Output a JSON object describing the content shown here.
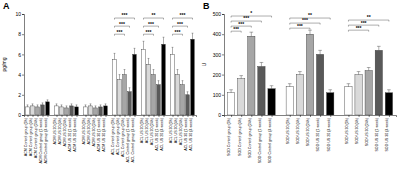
{
  "chart_data": [
    {
      "type": "bar",
      "title": "A",
      "y_label": "pg/mg",
      "categories": [
        "ACM Control group (0h)",
        "ACM Control group (4h)",
        "ACM Control group (24h)",
        "ACM Control group (1 week)",
        "ACM Control group (4 week)",
        "ACM US 20 (0h)",
        "ACM US 20 (4h)",
        "ACM US 20 (24h)",
        "ACM US 20 (1 week)",
        "ACM US 20 (4 week)",
        "ACM US 30 (0h)",
        "ACM US 30 (4h)",
        "ACM US 30 (24h)",
        "ACM US 30 (1 week)",
        "ACM US 30 (4 week)",
        "ACL Control group (0h)",
        "ACL Control group (4h)",
        "ACL Control group (24h)",
        "ACL Control group (1 week)",
        "ACL Control group (4 week)",
        "ACL US 20 (0h)",
        "ACL US 20 (4h)",
        "ACL US 20 (24h)",
        "ACL US 20 (1 week)",
        "ACL US 20 (4 week)",
        "ACL US 30 (0h)",
        "ACL US 30 (4h)",
        "ACL US 30 (24h)",
        "ACL US 30 (1 week)",
        "ACL US 30 (4 week)"
      ],
      "values": [
        0.8,
        0.9,
        0.8,
        1.0,
        1.3,
        0.9,
        0.8,
        0.7,
        0.9,
        0.8,
        0.8,
        0.9,
        0.7,
        0.8,
        0.9,
        5.5,
        3.5,
        4.0,
        2.3,
        6.0,
        6.5,
        5.0,
        4.0,
        3.0,
        7.0,
        6.0,
        4.0,
        3.0,
        2.0,
        7.5
      ],
      "errors": [
        0.2,
        0.2,
        0.2,
        0.2,
        0.2,
        0.2,
        0.2,
        0.2,
        0.2,
        0.2,
        0.2,
        0.2,
        0.2,
        0.2,
        0.2,
        0.6,
        0.5,
        0.5,
        0.4,
        0.6,
        0.8,
        0.6,
        0.5,
        0.4,
        0.7,
        0.7,
        0.5,
        0.4,
        0.3,
        0.6
      ],
      "colors": [
        "#ffffff",
        "#d9d9d9",
        "#a6a6a6",
        "#595959",
        "#000000",
        "#ffffff",
        "#d9d9d9",
        "#a6a6a6",
        "#595959",
        "#000000",
        "#ffffff",
        "#d9d9d9",
        "#a6a6a6",
        "#595959",
        "#000000",
        "#ffffff",
        "#d9d9d9",
        "#a6a6a6",
        "#595959",
        "#000000",
        "#ffffff",
        "#d9d9d9",
        "#a6a6a6",
        "#595959",
        "#000000",
        "#ffffff",
        "#d9d9d9",
        "#a6a6a6",
        "#595959",
        "#000000"
      ],
      "ylim": [
        0,
        10
      ],
      "yticks": [
        0,
        2,
        4,
        6,
        8,
        10
      ],
      "annotations": [
        {
          "from": 15,
          "to": 19,
          "y": 9.6,
          "label": "***"
        },
        {
          "from": 15,
          "to": 18,
          "y": 8.8,
          "label": "***"
        },
        {
          "from": 15,
          "to": 17,
          "y": 8.0,
          "label": "***"
        },
        {
          "from": 20,
          "to": 24,
          "y": 9.6,
          "label": "**"
        },
        {
          "from": 20,
          "to": 23,
          "y": 8.8,
          "label": "***"
        },
        {
          "from": 20,
          "to": 22,
          "y": 8.0,
          "label": "***"
        },
        {
          "from": 25,
          "to": 29,
          "y": 9.6,
          "label": "***"
        },
        {
          "from": 25,
          "to": 28,
          "y": 8.8,
          "label": "***"
        },
        {
          "from": 25,
          "to": 27,
          "y": 8.0,
          "label": "***"
        }
      ]
    },
    {
      "type": "bar",
      "title": "B",
      "y_label": "U",
      "categories": [
        "SOD Control group (0h)",
        "SOD Control group (4h)",
        "SOD Control group (24h)",
        "SOD Control group (1 week)",
        "SOD Control group (4 week)",
        "SOD US 20 (0h)",
        "SOD US 20 (4h)",
        "SOD US 20 (24h)",
        "SOD US 20 (1 week)",
        "SOD US 20 (4 week)",
        "SOD US 30 (0h)",
        "SOD US 30 (4h)",
        "SOD US 30 (24h)",
        "SOD US 30 (1 week)",
        "SOD US 30 (4 week)"
      ],
      "values": [
        110,
        180,
        390,
        240,
        130,
        140,
        200,
        400,
        300,
        110,
        140,
        200,
        220,
        320,
        110
      ],
      "errors": [
        15,
        15,
        20,
        20,
        15,
        15,
        15,
        20,
        20,
        15,
        15,
        15,
        15,
        20,
        15
      ],
      "colors": [
        "#ffffff",
        "#d9d9d9",
        "#a6a6a6",
        "#595959",
        "#000000",
        "#ffffff",
        "#d9d9d9",
        "#a6a6a6",
        "#595959",
        "#000000",
        "#ffffff",
        "#d9d9d9",
        "#a6a6a6",
        "#595959",
        "#000000"
      ],
      "ylim": [
        0,
        500
      ],
      "yticks": [
        0,
        100,
        200,
        300,
        400,
        500
      ],
      "annotations": [
        {
          "from": 0,
          "to": 4,
          "y": 490,
          "label": "*"
        },
        {
          "from": 0,
          "to": 3,
          "y": 465,
          "label": "***"
        },
        {
          "from": 0,
          "to": 2,
          "y": 440,
          "label": "***"
        },
        {
          "from": 0,
          "to": 1,
          "y": 415,
          "label": "***"
        },
        {
          "from": 5,
          "to": 9,
          "y": 480,
          "label": "**"
        },
        {
          "from": 5,
          "to": 8,
          "y": 455,
          "label": "***"
        },
        {
          "from": 5,
          "to": 7,
          "y": 430,
          "label": "***"
        },
        {
          "from": 10,
          "to": 14,
          "y": 470,
          "label": "**"
        },
        {
          "from": 10,
          "to": 13,
          "y": 445,
          "label": "***"
        },
        {
          "from": 10,
          "to": 12,
          "y": 420,
          "label": "***"
        }
      ]
    }
  ]
}
